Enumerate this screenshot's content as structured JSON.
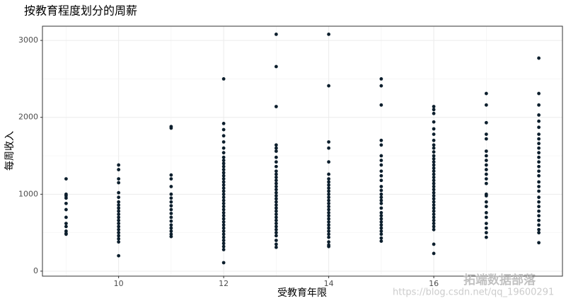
{
  "chart_data": {
    "type": "scatter",
    "title": "按教育程度划分的周薪",
    "x_label": "受教育年限",
    "y_label": "每周收入",
    "color": "#0d1f2d",
    "grid": true,
    "xlim": [
      8.55,
      18.45
    ],
    "ylim": [
      -65,
      3185
    ],
    "xticks": [
      10,
      12,
      14,
      16
    ],
    "yticks": [
      0,
      1000,
      2000,
      3000
    ],
    "annotations": [
      "拓端数据部落",
      "https://blog.csdn.net/qq_19600291"
    ],
    "x": [
      9,
      9,
      9,
      9,
      9,
      9,
      9,
      9,
      9,
      9,
      9,
      9,
      10,
      10,
      10,
      10,
      10,
      10,
      10,
      10,
      10,
      10,
      10,
      10,
      10,
      10,
      10,
      10,
      10,
      10,
      10,
      10,
      10,
      11,
      11,
      11,
      11,
      11,
      11,
      11,
      11,
      11,
      11,
      11,
      11,
      11,
      11,
      11,
      11,
      11,
      11,
      12,
      12,
      12,
      12,
      12,
      12,
      12,
      12,
      12,
      12,
      12,
      12,
      12,
      12,
      12,
      12,
      12,
      12,
      12,
      12,
      12,
      12,
      12,
      12,
      12,
      12,
      12,
      12,
      12,
      12,
      12,
      12,
      12,
      12,
      12,
      12,
      12,
      12,
      12,
      13,
      13,
      13,
      13,
      13,
      13,
      13,
      13,
      13,
      13,
      13,
      13,
      13,
      13,
      13,
      13,
      13,
      13,
      13,
      13,
      13,
      13,
      13,
      13,
      13,
      13,
      13,
      13,
      13,
      13,
      13,
      13,
      13,
      13,
      14,
      14,
      14,
      14,
      14,
      14,
      14,
      14,
      14,
      14,
      14,
      14,
      14,
      14,
      14,
      14,
      14,
      14,
      14,
      14,
      14,
      14,
      14,
      14,
      14,
      14,
      14,
      14,
      14,
      15,
      15,
      15,
      15,
      15,
      15,
      15,
      15,
      15,
      15,
      15,
      15,
      15,
      15,
      15,
      15,
      15,
      15,
      15,
      15,
      15,
      15,
      15,
      15,
      15,
      15,
      15,
      15,
      16,
      16,
      16,
      16,
      16,
      16,
      16,
      16,
      16,
      16,
      16,
      16,
      16,
      16,
      16,
      16,
      16,
      16,
      16,
      16,
      16,
      16,
      16,
      16,
      16,
      16,
      16,
      16,
      16,
      16,
      16,
      16,
      16,
      16,
      16,
      16,
      16,
      17,
      17,
      17,
      17,
      17,
      17,
      17,
      17,
      17,
      17,
      17,
      17,
      17,
      17,
      17,
      17,
      17,
      17,
      17,
      17,
      17,
      17,
      17,
      18,
      18,
      18,
      18,
      18,
      18,
      18,
      18,
      18,
      18,
      18,
      18,
      18,
      18,
      18,
      18,
      18,
      18,
      18,
      18,
      18,
      18,
      18,
      18,
      18,
      18,
      18,
      18,
      18
    ],
    "values": [
      1200,
      1000,
      980,
      950,
      880,
      800,
      700,
      620,
      580,
      520,
      490,
      480,
      1380,
      1320,
      1200,
      1150,
      1020,
      960,
      900,
      860,
      820,
      780,
      740,
      700,
      660,
      620,
      580,
      540,
      500,
      460,
      420,
      380,
      200,
      1880,
      1860,
      1250,
      1200,
      1100,
      1000,
      950,
      900,
      850,
      800,
      750,
      700,
      650,
      600,
      560,
      520,
      480,
      450,
      2500,
      1920,
      1840,
      1760,
      1680,
      1600,
      1540,
      1480,
      1440,
      1400,
      1360,
      1320,
      1280,
      1240,
      1200,
      1160,
      1120,
      1080,
      1040,
      1000,
      960,
      920,
      880,
      840,
      800,
      760,
      720,
      680,
      640,
      600,
      560,
      520,
      480,
      440,
      400,
      360,
      320,
      280,
      110,
      3080,
      2660,
      2140,
      1640,
      1600,
      1560,
      1480,
      1420,
      1360,
      1300,
      1260,
      1220,
      1180,
      1140,
      1100,
      1060,
      1020,
      980,
      940,
      900,
      860,
      820,
      780,
      740,
      700,
      660,
      620,
      580,
      540,
      500,
      460,
      400,
      350,
      310,
      3080,
      2410,
      1680,
      1600,
      1420,
      1260,
      1200,
      1160,
      1120,
      1080,
      1040,
      1000,
      960,
      920,
      880,
      840,
      800,
      760,
      720,
      680,
      640,
      600,
      560,
      520,
      480,
      440,
      380,
      340,
      320,
      2500,
      2410,
      2160,
      1700,
      1640,
      1500,
      1440,
      1380,
      1300,
      1240,
      1180,
      1100,
      1050,
      1000,
      960,
      920,
      880,
      820,
      760,
      720,
      680,
      640,
      600,
      560,
      520,
      480,
      430,
      390,
      2140,
      2100,
      2050,
      1940,
      1850,
      1780,
      1700,
      1640,
      1600,
      1550,
      1500,
      1460,
      1420,
      1380,
      1340,
      1300,
      1260,
      1220,
      1180,
      1140,
      1100,
      1060,
      1020,
      980,
      940,
      900,
      860,
      820,
      780,
      740,
      700,
      660,
      620,
      580,
      540,
      350,
      230,
      2310,
      2160,
      1930,
      1780,
      1720,
      1560,
      1500,
      1440,
      1380,
      1320,
      1260,
      1200,
      1140,
      1000,
      980,
      900,
      840,
      760,
      700,
      620,
      560,
      500,
      440,
      2770,
      2310,
      2160,
      2030,
      1950,
      1870,
      1780,
      1720,
      1660,
      1600,
      1540,
      1480,
      1420,
      1360,
      1300,
      1240,
      1160,
      1100,
      1040,
      960,
      900,
      840,
      780,
      720,
      660,
      600,
      540,
      500,
      370
    ]
  }
}
